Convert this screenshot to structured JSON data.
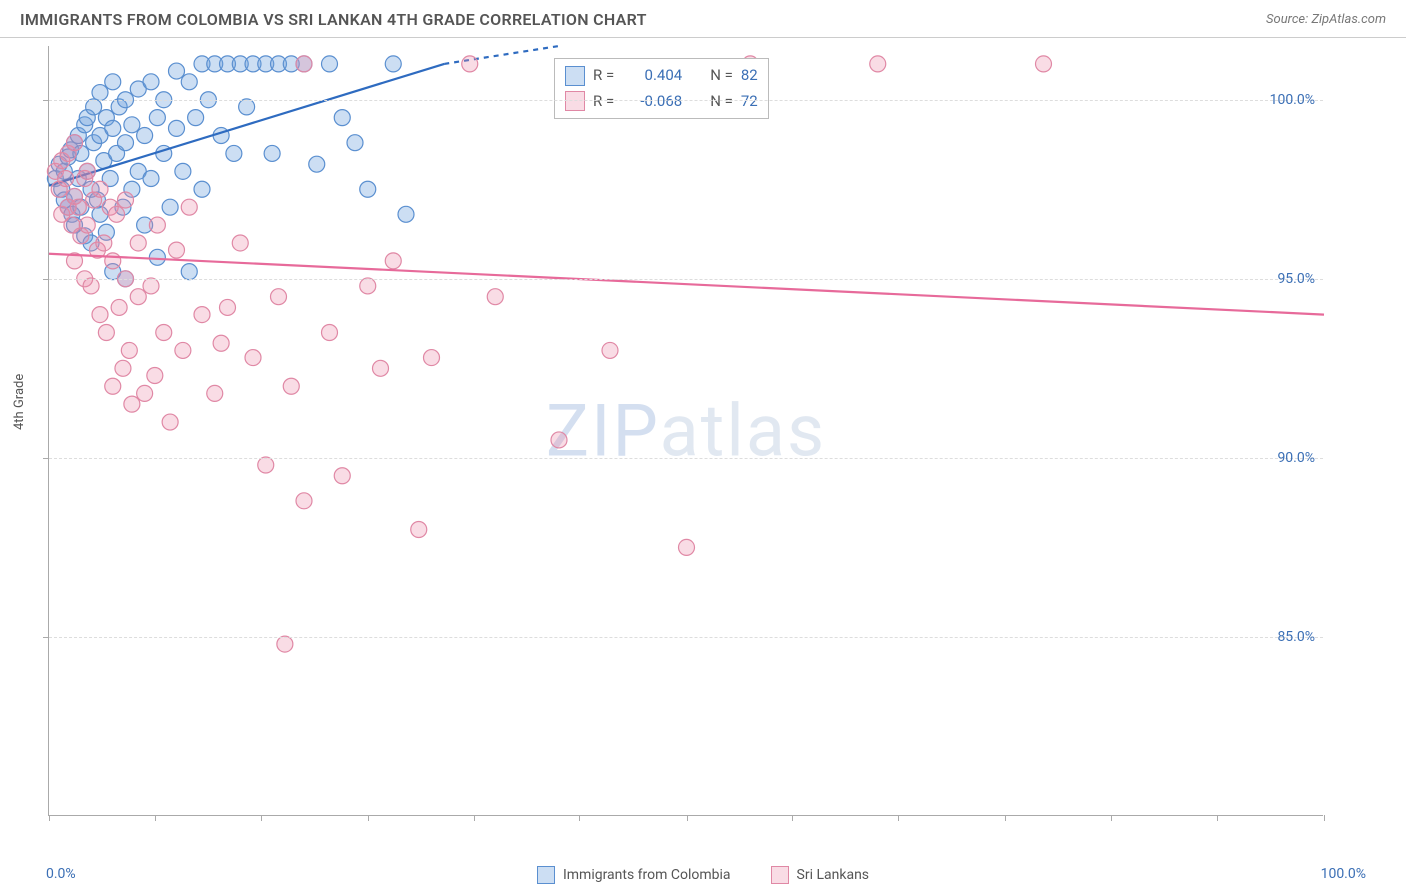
{
  "header": {
    "title": "IMMIGRANTS FROM COLOMBIA VS SRI LANKAN 4TH GRADE CORRELATION CHART",
    "source_prefix": "Source: ",
    "source_name": "ZipAtlas.com"
  },
  "chart": {
    "type": "scatter",
    "y_axis_label": "4th Grade",
    "x_range": [
      0,
      100
    ],
    "y_range": [
      80,
      101.5
    ],
    "x_tick_positions": [
      0,
      8.3,
      16.6,
      25,
      33.3,
      41.6,
      50,
      58.3,
      66.6,
      75,
      83.3,
      91.6,
      100
    ],
    "y_ticks": [
      {
        "value": 85.0,
        "label": "85.0%"
      },
      {
        "value": 90.0,
        "label": "90.0%"
      },
      {
        "value": 95.0,
        "label": "95.0%"
      },
      {
        "value": 100.0,
        "label": "100.0%"
      }
    ],
    "x_label_min": "0.0%",
    "x_label_max": "100.0%",
    "background_color": "#ffffff",
    "grid_color": "#dddddd",
    "axis_color": "#aaaaaa",
    "marker_radius": 8,
    "marker_stroke_width": 1.2,
    "trend_line_width": 2.2,
    "watermark_text_1": "ZIP",
    "watermark_text_2": "atlas"
  },
  "series": [
    {
      "name": "Immigrants from Colombia",
      "fill_color": "rgba(110,160,220,0.35)",
      "stroke_color": "#5a8fd0",
      "trend_color": "#2e6bc0",
      "r_value": "0.404",
      "n_value": "82",
      "trend_line": {
        "x1": 0,
        "y1": 97.6,
        "x2": 31,
        "y2": 101.0
      },
      "trend_dash": {
        "x1": 31,
        "y1": 101.0,
        "x2": 40,
        "y2": 101.5
      },
      "points": [
        [
          0.5,
          97.8
        ],
        [
          0.8,
          98.2
        ],
        [
          1.0,
          97.5
        ],
        [
          1.2,
          98.0
        ],
        [
          1.2,
          97.2
        ],
        [
          1.5,
          98.4
        ],
        [
          1.5,
          97.0
        ],
        [
          1.7,
          98.6
        ],
        [
          1.8,
          96.8
        ],
        [
          2.0,
          98.8
        ],
        [
          2.0,
          97.3
        ],
        [
          2.0,
          96.5
        ],
        [
          2.3,
          99.0
        ],
        [
          2.3,
          97.8
        ],
        [
          2.5,
          97.0
        ],
        [
          2.5,
          98.5
        ],
        [
          2.8,
          99.3
        ],
        [
          2.8,
          96.2
        ],
        [
          3.0,
          98.0
        ],
        [
          3.0,
          99.5
        ],
        [
          3.3,
          97.5
        ],
        [
          3.3,
          96.0
        ],
        [
          3.5,
          98.8
        ],
        [
          3.5,
          99.8
        ],
        [
          3.8,
          97.2
        ],
        [
          4.0,
          99.0
        ],
        [
          4.0,
          96.8
        ],
        [
          4.0,
          100.2
        ],
        [
          4.3,
          98.3
        ],
        [
          4.5,
          99.5
        ],
        [
          4.5,
          96.3
        ],
        [
          4.8,
          97.8
        ],
        [
          5.0,
          99.2
        ],
        [
          5.0,
          100.5
        ],
        [
          5.0,
          95.2
        ],
        [
          5.3,
          98.5
        ],
        [
          5.5,
          99.8
        ],
        [
          5.8,
          97.0
        ],
        [
          6.0,
          100.0
        ],
        [
          6.0,
          98.8
        ],
        [
          6.0,
          95.0
        ],
        [
          6.5,
          99.3
        ],
        [
          6.5,
          97.5
        ],
        [
          7.0,
          100.3
        ],
        [
          7.0,
          98.0
        ],
        [
          7.5,
          99.0
        ],
        [
          7.5,
          96.5
        ],
        [
          8.0,
          100.5
        ],
        [
          8.0,
          97.8
        ],
        [
          8.5,
          99.5
        ],
        [
          8.5,
          95.6
        ],
        [
          9.0,
          98.5
        ],
        [
          9.0,
          100.0
        ],
        [
          9.5,
          97.0
        ],
        [
          10.0,
          100.8
        ],
        [
          10.0,
          99.2
        ],
        [
          10.5,
          98.0
        ],
        [
          11.0,
          100.5
        ],
        [
          11.0,
          95.2
        ],
        [
          11.5,
          99.5
        ],
        [
          12.0,
          101.0
        ],
        [
          12.0,
          97.5
        ],
        [
          12.5,
          100.0
        ],
        [
          13.0,
          101.0
        ],
        [
          13.5,
          99.0
        ],
        [
          14.0,
          101.0
        ],
        [
          14.5,
          98.5
        ],
        [
          15.0,
          101.0
        ],
        [
          15.5,
          99.8
        ],
        [
          16.0,
          101.0
        ],
        [
          17.0,
          101.0
        ],
        [
          17.5,
          98.5
        ],
        [
          18.0,
          101.0
        ],
        [
          19.0,
          101.0
        ],
        [
          20.0,
          101.0
        ],
        [
          21.0,
          98.2
        ],
        [
          22.0,
          101.0
        ],
        [
          23.0,
          99.5
        ],
        [
          24.0,
          98.8
        ],
        [
          25.0,
          97.5
        ],
        [
          27.0,
          101.0
        ],
        [
          28.0,
          96.8
        ]
      ]
    },
    {
      "name": "Sri Lankans",
      "fill_color": "rgba(235,140,170,0.30)",
      "stroke_color": "#e088a5",
      "trend_color": "#e76a9a",
      "r_value": "-0.068",
      "n_value": "72",
      "trend_line": {
        "x1": 0,
        "y1": 95.7,
        "x2": 100,
        "y2": 94.0
      },
      "points": [
        [
          0.5,
          98.0
        ],
        [
          0.8,
          97.5
        ],
        [
          1.0,
          98.3
        ],
        [
          1.0,
          96.8
        ],
        [
          1.3,
          97.8
        ],
        [
          1.5,
          97.0
        ],
        [
          1.5,
          98.5
        ],
        [
          1.8,
          96.5
        ],
        [
          2.0,
          97.3
        ],
        [
          2.0,
          98.8
        ],
        [
          2.0,
          95.5
        ],
        [
          2.3,
          97.0
        ],
        [
          2.5,
          96.2
        ],
        [
          2.8,
          97.8
        ],
        [
          2.8,
          95.0
        ],
        [
          3.0,
          98.0
        ],
        [
          3.0,
          96.5
        ],
        [
          3.3,
          94.8
        ],
        [
          3.5,
          97.2
        ],
        [
          3.8,
          95.8
        ],
        [
          4.0,
          94.0
        ],
        [
          4.0,
          97.5
        ],
        [
          4.3,
          96.0
        ],
        [
          4.5,
          93.5
        ],
        [
          4.8,
          97.0
        ],
        [
          5.0,
          95.5
        ],
        [
          5.0,
          92.0
        ],
        [
          5.3,
          96.8
        ],
        [
          5.5,
          94.2
        ],
        [
          5.8,
          92.5
        ],
        [
          6.0,
          97.2
        ],
        [
          6.0,
          95.0
        ],
        [
          6.3,
          93.0
        ],
        [
          6.5,
          91.5
        ],
        [
          7.0,
          96.0
        ],
        [
          7.0,
          94.5
        ],
        [
          7.5,
          91.8
        ],
        [
          8.0,
          94.8
        ],
        [
          8.3,
          92.3
        ],
        [
          8.5,
          96.5
        ],
        [
          9.0,
          93.5
        ],
        [
          9.5,
          91.0
        ],
        [
          10.0,
          95.8
        ],
        [
          10.5,
          93.0
        ],
        [
          11.0,
          97.0
        ],
        [
          12.0,
          94.0
        ],
        [
          13.0,
          91.8
        ],
        [
          13.5,
          93.2
        ],
        [
          14.0,
          94.2
        ],
        [
          15.0,
          96.0
        ],
        [
          16.0,
          92.8
        ],
        [
          17.0,
          89.8
        ],
        [
          18.0,
          94.5
        ],
        [
          18.5,
          84.8
        ],
        [
          19.0,
          92.0
        ],
        [
          20.0,
          88.8
        ],
        [
          20.0,
          101.0
        ],
        [
          22.0,
          93.5
        ],
        [
          23.0,
          89.5
        ],
        [
          25.0,
          94.8
        ],
        [
          26.0,
          92.5
        ],
        [
          27.0,
          95.5
        ],
        [
          29.0,
          88.0
        ],
        [
          30.0,
          92.8
        ],
        [
          33.0,
          101.0
        ],
        [
          35.0,
          94.5
        ],
        [
          40.0,
          90.5
        ],
        [
          44.0,
          93.0
        ],
        [
          50.0,
          87.5
        ],
        [
          55.0,
          101.0
        ],
        [
          65.0,
          101.0
        ],
        [
          78.0,
          101.0
        ]
      ]
    }
  ],
  "stats_box": {
    "r_label": "R =",
    "n_label": "N ="
  },
  "bottom_legend": {
    "items": [
      {
        "label": "Immigrants from Colombia",
        "fill": "rgba(110,160,220,0.35)",
        "stroke": "#5a8fd0"
      },
      {
        "label": "Sri Lankans",
        "fill": "rgba(235,140,170,0.30)",
        "stroke": "#e088a5"
      }
    ]
  }
}
